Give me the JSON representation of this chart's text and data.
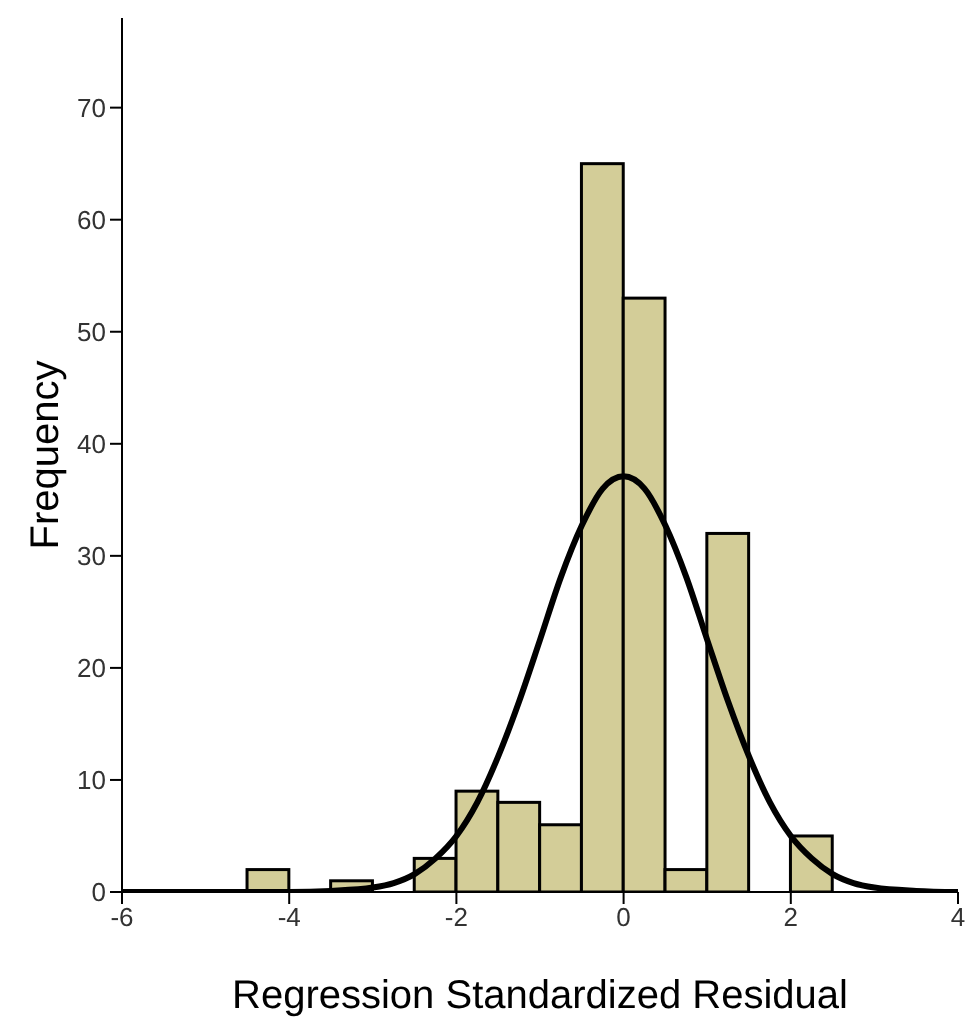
{
  "chart_data": {
    "type": "histogram",
    "xlabel": "Regression Standardized Residual",
    "ylabel": "Frequency",
    "bins": [
      -4.5,
      -4,
      -3.5,
      -3,
      -2.5,
      -2,
      -1.5,
      -1,
      -0.5,
      0,
      0.5,
      1,
      1.5,
      2,
      2.5
    ],
    "values": [
      2,
      0,
      1,
      0,
      3,
      9,
      8,
      6,
      65,
      53,
      2,
      32,
      0,
      5
    ],
    "color": "#d3cd98",
    "series": [
      {
        "type": "line",
        "color": "#000000",
        "x": [
          -6,
          -4,
          -3.5,
          -3,
          -2.75,
          -2.5,
          -2.25,
          -2,
          -1.75,
          -1.5,
          -1.25,
          -1,
          -0.75,
          -0.5,
          -0.25,
          0,
          0.25,
          0.5,
          0.75,
          1,
          1.25,
          1.5,
          1.75,
          2,
          2.25,
          2.5,
          2.75,
          3,
          3.5,
          4
        ],
        "values": [
          0,
          0,
          0.1,
          0.4,
          0.8,
          1.6,
          3,
          5,
          8,
          12.1,
          17,
          22.5,
          28.1,
          32.7,
          36,
          37.1,
          36,
          32.7,
          28.1,
          22.5,
          17,
          12.1,
          8,
          5,
          3,
          1.6,
          0.8,
          0.4,
          0.1,
          0
        ]
      }
    ],
    "xlim": [
      -6,
      4
    ],
    "xticks": [
      -6,
      -4,
      -2,
      0,
      2,
      4
    ],
    "ylim": [
      0,
      78
    ],
    "yticks": [
      0,
      10,
      20,
      30,
      40,
      50,
      60,
      70
    ],
    "grid": false,
    "legend": false
  }
}
